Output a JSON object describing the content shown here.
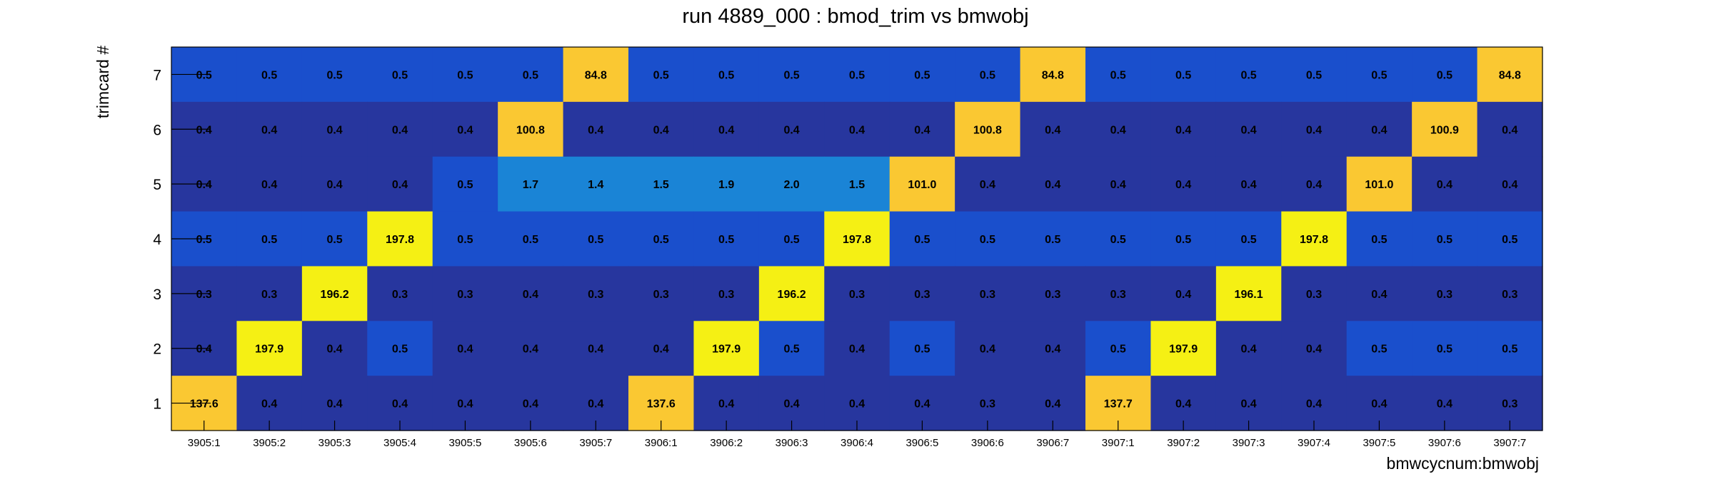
{
  "chart_data": {
    "type": "heatmap",
    "title": "run 4889_000 : bmod_trim vs bmwobj",
    "xlabel": "bmwcycnum:bmwobj",
    "ylabel": "trimcard #",
    "x_categories": [
      "3905:1",
      "3905:2",
      "3905:3",
      "3905:4",
      "3905:5",
      "3905:6",
      "3905:7",
      "3906:1",
      "3906:2",
      "3906:3",
      "3906:4",
      "3906:5",
      "3906:6",
      "3906:7",
      "3907:1",
      "3907:2",
      "3907:3",
      "3907:4",
      "3907:5",
      "3907:6",
      "3907:7"
    ],
    "y_categories": [
      "1",
      "2",
      "3",
      "4",
      "5",
      "6",
      "7"
    ],
    "rows": [
      {
        "y": "7",
        "values": [
          "0.5",
          "0.5",
          "0.5",
          "0.5",
          "0.5",
          "0.5",
          "84.8",
          "0.5",
          "0.5",
          "0.5",
          "0.5",
          "0.5",
          "0.5",
          "84.8",
          "0.5",
          "0.5",
          "0.5",
          "0.5",
          "0.5",
          "0.5",
          "84.8"
        ]
      },
      {
        "y": "6",
        "values": [
          "0.4",
          "0.4",
          "0.4",
          "0.4",
          "0.4",
          "100.8",
          "0.4",
          "0.4",
          "0.4",
          "0.4",
          "0.4",
          "0.4",
          "100.8",
          "0.4",
          "0.4",
          "0.4",
          "0.4",
          "0.4",
          "0.4",
          "100.9",
          "0.4"
        ]
      },
      {
        "y": "5",
        "values": [
          "0.4",
          "0.4",
          "0.4",
          "0.4",
          "0.5",
          "1.7",
          "1.4",
          "1.5",
          "1.9",
          "2.0",
          "1.5",
          "101.0",
          "0.4",
          "0.4",
          "0.4",
          "0.4",
          "0.4",
          "0.4",
          "101.0",
          "0.4",
          "0.4"
        ]
      },
      {
        "y": "4",
        "values": [
          "0.5",
          "0.5",
          "0.5",
          "197.8",
          "0.5",
          "0.5",
          "0.5",
          "0.5",
          "0.5",
          "0.5",
          "197.8",
          "0.5",
          "0.5",
          "0.5",
          "0.5",
          "0.5",
          "0.5",
          "197.8",
          "0.5",
          "0.5",
          "0.5"
        ]
      },
      {
        "y": "3",
        "values": [
          "0.3",
          "0.3",
          "196.2",
          "0.3",
          "0.3",
          "0.4",
          "0.3",
          "0.3",
          "0.3",
          "196.2",
          "0.3",
          "0.3",
          "0.3",
          "0.3",
          "0.3",
          "0.4",
          "196.1",
          "0.3",
          "0.4",
          "0.3",
          "0.3"
        ]
      },
      {
        "y": "2",
        "values": [
          "0.4",
          "197.9",
          "0.4",
          "0.5",
          "0.4",
          "0.4",
          "0.4",
          "0.4",
          "197.9",
          "0.5",
          "0.4",
          "0.5",
          "0.4",
          "0.4",
          "0.5",
          "197.9",
          "0.4",
          "0.4",
          "0.5",
          "0.5",
          "0.5"
        ]
      },
      {
        "y": "1",
        "values": [
          "137.6",
          "0.4",
          "0.4",
          "0.4",
          "0.4",
          "0.4",
          "0.4",
          "137.6",
          "0.4",
          "0.4",
          "0.4",
          "0.4",
          "0.3",
          "0.4",
          "137.7",
          "0.4",
          "0.4",
          "0.4",
          "0.4",
          "0.4",
          "0.3"
        ]
      }
    ],
    "colors": {
      "low": "#27369e",
      "mid_low": "#1a4fcc",
      "mid": "#1a84d6",
      "high_mid": "#fac832",
      "high": "#f5f014"
    },
    "grid": false,
    "legend": "none"
  }
}
